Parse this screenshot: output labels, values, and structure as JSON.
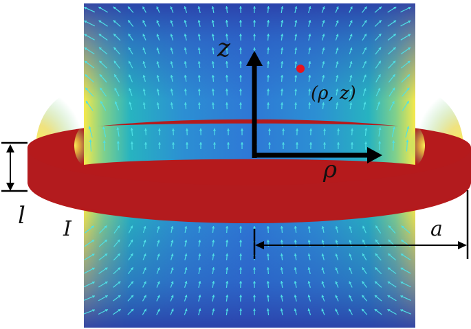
{
  "labels": {
    "z_axis": "z",
    "rho_axis": "ρ",
    "point": "(ρ, z)",
    "thickness": "l",
    "current": "I",
    "radius": "a"
  },
  "colors": {
    "ring": "#b51a1c",
    "ring_dark": "#8e1215",
    "point": "#e8141c",
    "arrow_field": "#4fe0e6",
    "axes": "#000000",
    "map_low": "#2c57b8",
    "map_mid": "#27b3c0",
    "map_high": "#f6e94a"
  },
  "field_map": {
    "colormap": "parula",
    "quantity": "magnetic field magnitude with direction arrows"
  }
}
